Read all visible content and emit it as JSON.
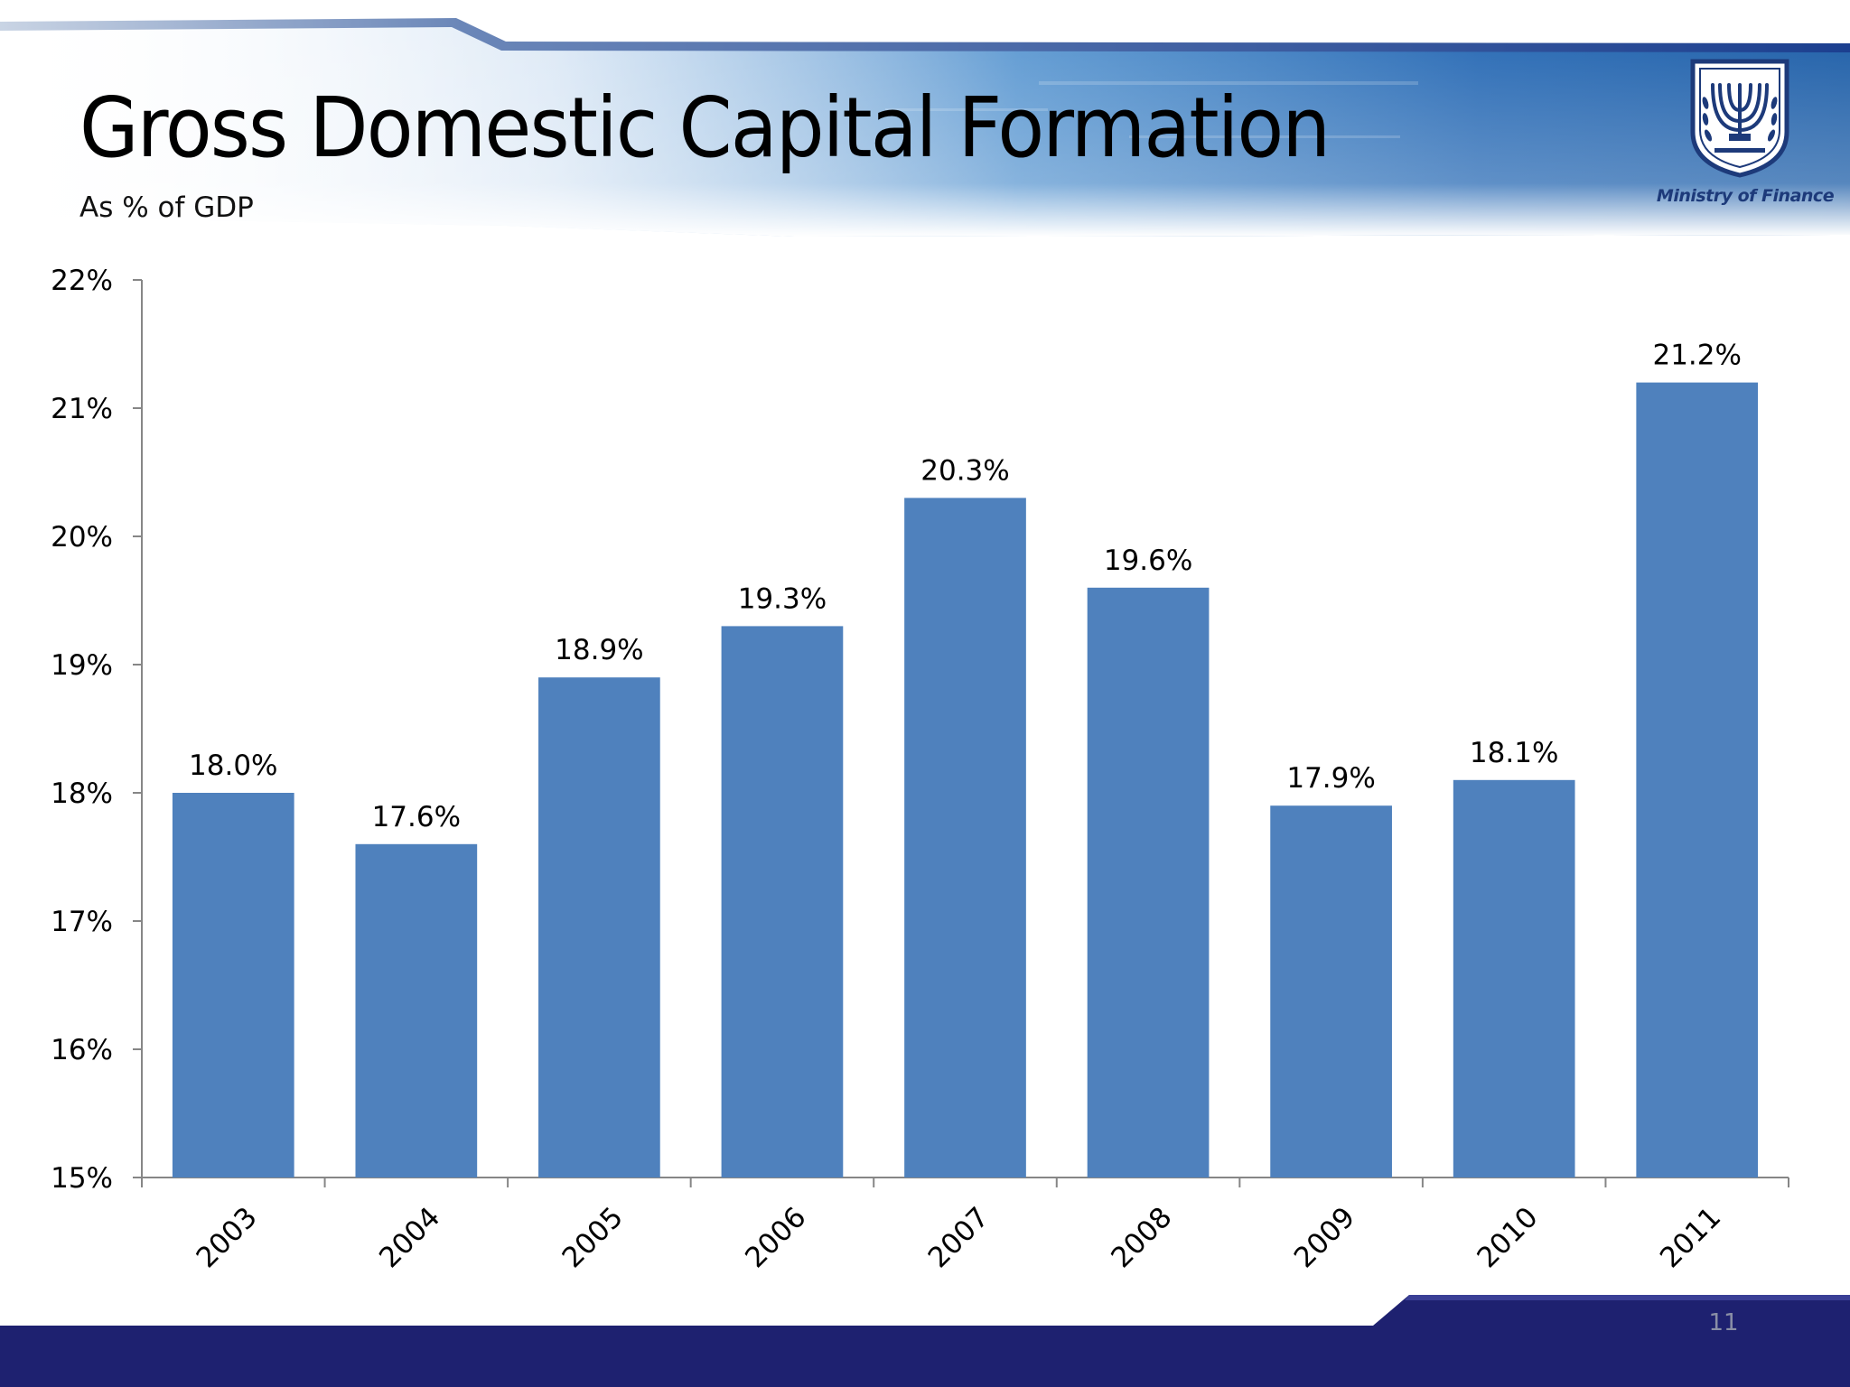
{
  "slide": {
    "title": "Gross Domestic Capital Formation",
    "subtitle": "As % of GDP",
    "logo_text": "Ministry of Finance",
    "page_number": "11",
    "colors": {
      "bar": "#4f81bd",
      "axis": "#868686",
      "banner_blue": "#1f5fa8",
      "footer_navy": "#1e2170",
      "logo_blue": "#1d3a7a"
    },
    "icons": [
      "emblem-icon"
    ]
  },
  "chart_data": {
    "type": "bar",
    "title": "",
    "xlabel": "",
    "ylabel": "",
    "categories": [
      "2003",
      "2004",
      "2005",
      "2006",
      "2007",
      "2008",
      "2009",
      "2010",
      "2011"
    ],
    "values": [
      18.0,
      17.6,
      18.9,
      19.3,
      20.3,
      19.6,
      17.9,
      18.1,
      21.2
    ],
    "data_labels": [
      "18.0%",
      "17.6%",
      "18.9%",
      "19.3%",
      "20.3%",
      "19.6%",
      "17.9%",
      "18.1%",
      "21.2%"
    ],
    "ylim": [
      15,
      22
    ],
    "yticks": [
      15,
      16,
      17,
      18,
      19,
      20,
      21,
      22
    ],
    "ytick_labels": [
      "15%",
      "16%",
      "17%",
      "18%",
      "19%",
      "20%",
      "21%",
      "22%"
    ],
    "grid": false,
    "legend": "none"
  }
}
